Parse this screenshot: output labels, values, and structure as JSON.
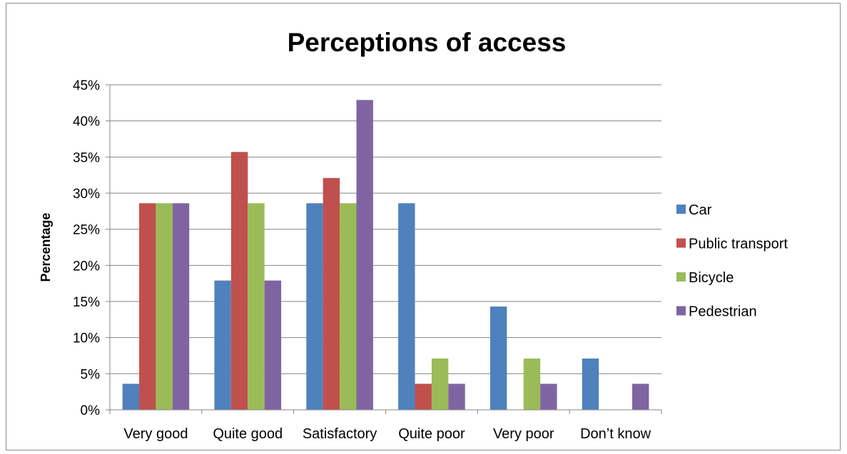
{
  "chart_data": {
    "type": "bar",
    "title": "Perceptions of access",
    "xlabel": "",
    "ylabel": "Percentage",
    "categories": [
      "Very good",
      "Quite good",
      "Satisfactory",
      "Quite poor",
      "Very poor",
      "Don’t know"
    ],
    "series": [
      {
        "name": "Car",
        "color": "#4F81BD",
        "values": [
          3.6,
          17.9,
          28.6,
          28.6,
          14.3,
          7.1
        ]
      },
      {
        "name": "Public transport",
        "color": "#C0504D",
        "values": [
          28.6,
          35.7,
          32.1,
          3.6,
          0,
          0
        ]
      },
      {
        "name": "Bicycle",
        "color": "#9BBB59",
        "values": [
          28.6,
          28.6,
          28.6,
          7.1,
          7.1,
          0
        ]
      },
      {
        "name": "Pedestrian",
        "color": "#8064A2",
        "values": [
          28.6,
          17.9,
          42.9,
          3.6,
          3.6,
          3.6
        ]
      }
    ],
    "ylim": [
      0,
      45
    ],
    "yticks": [
      "0%",
      "5%",
      "10%",
      "15%",
      "20%",
      "25%",
      "30%",
      "35%",
      "40%",
      "45%"
    ],
    "grid": true,
    "legend_position": "right"
  }
}
